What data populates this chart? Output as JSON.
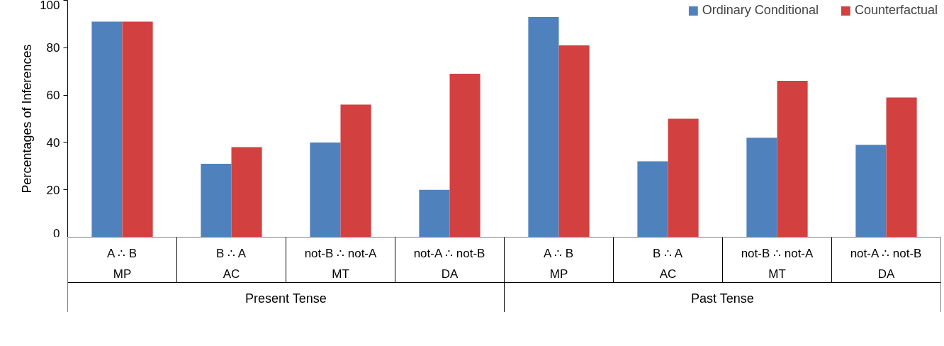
{
  "chart_data": {
    "type": "bar",
    "ylabel": "Percentages of Inferences",
    "categories": [
      "A ∴ B\nMP",
      "B ∴ A\nAC",
      "not-B ∴ not-A\nMT",
      "not-A ∴ not-B\nDA",
      "A ∴ B\nMP",
      "B ∴ A\nAC",
      "not-B ∴ not-A\nMT",
      "not-A ∴ not-B\nDA"
    ],
    "annotations": [
      "Present Tense",
      "Past Tense"
    ],
    "series": [
      {
        "name": "Ordinary Conditional",
        "color": "#4f81bd",
        "values": [
          91,
          31,
          40,
          20,
          93,
          32,
          42,
          39
        ]
      },
      {
        "name": "Counterfactual",
        "color": "#d24040",
        "values": [
          91,
          38,
          56,
          69,
          81,
          50,
          66,
          59
        ]
      }
    ],
    "ylim": [
      0,
      100
    ],
    "yticks": [
      0,
      20,
      40,
      60,
      80,
      100
    ],
    "grid": false,
    "legend": "top right"
  }
}
